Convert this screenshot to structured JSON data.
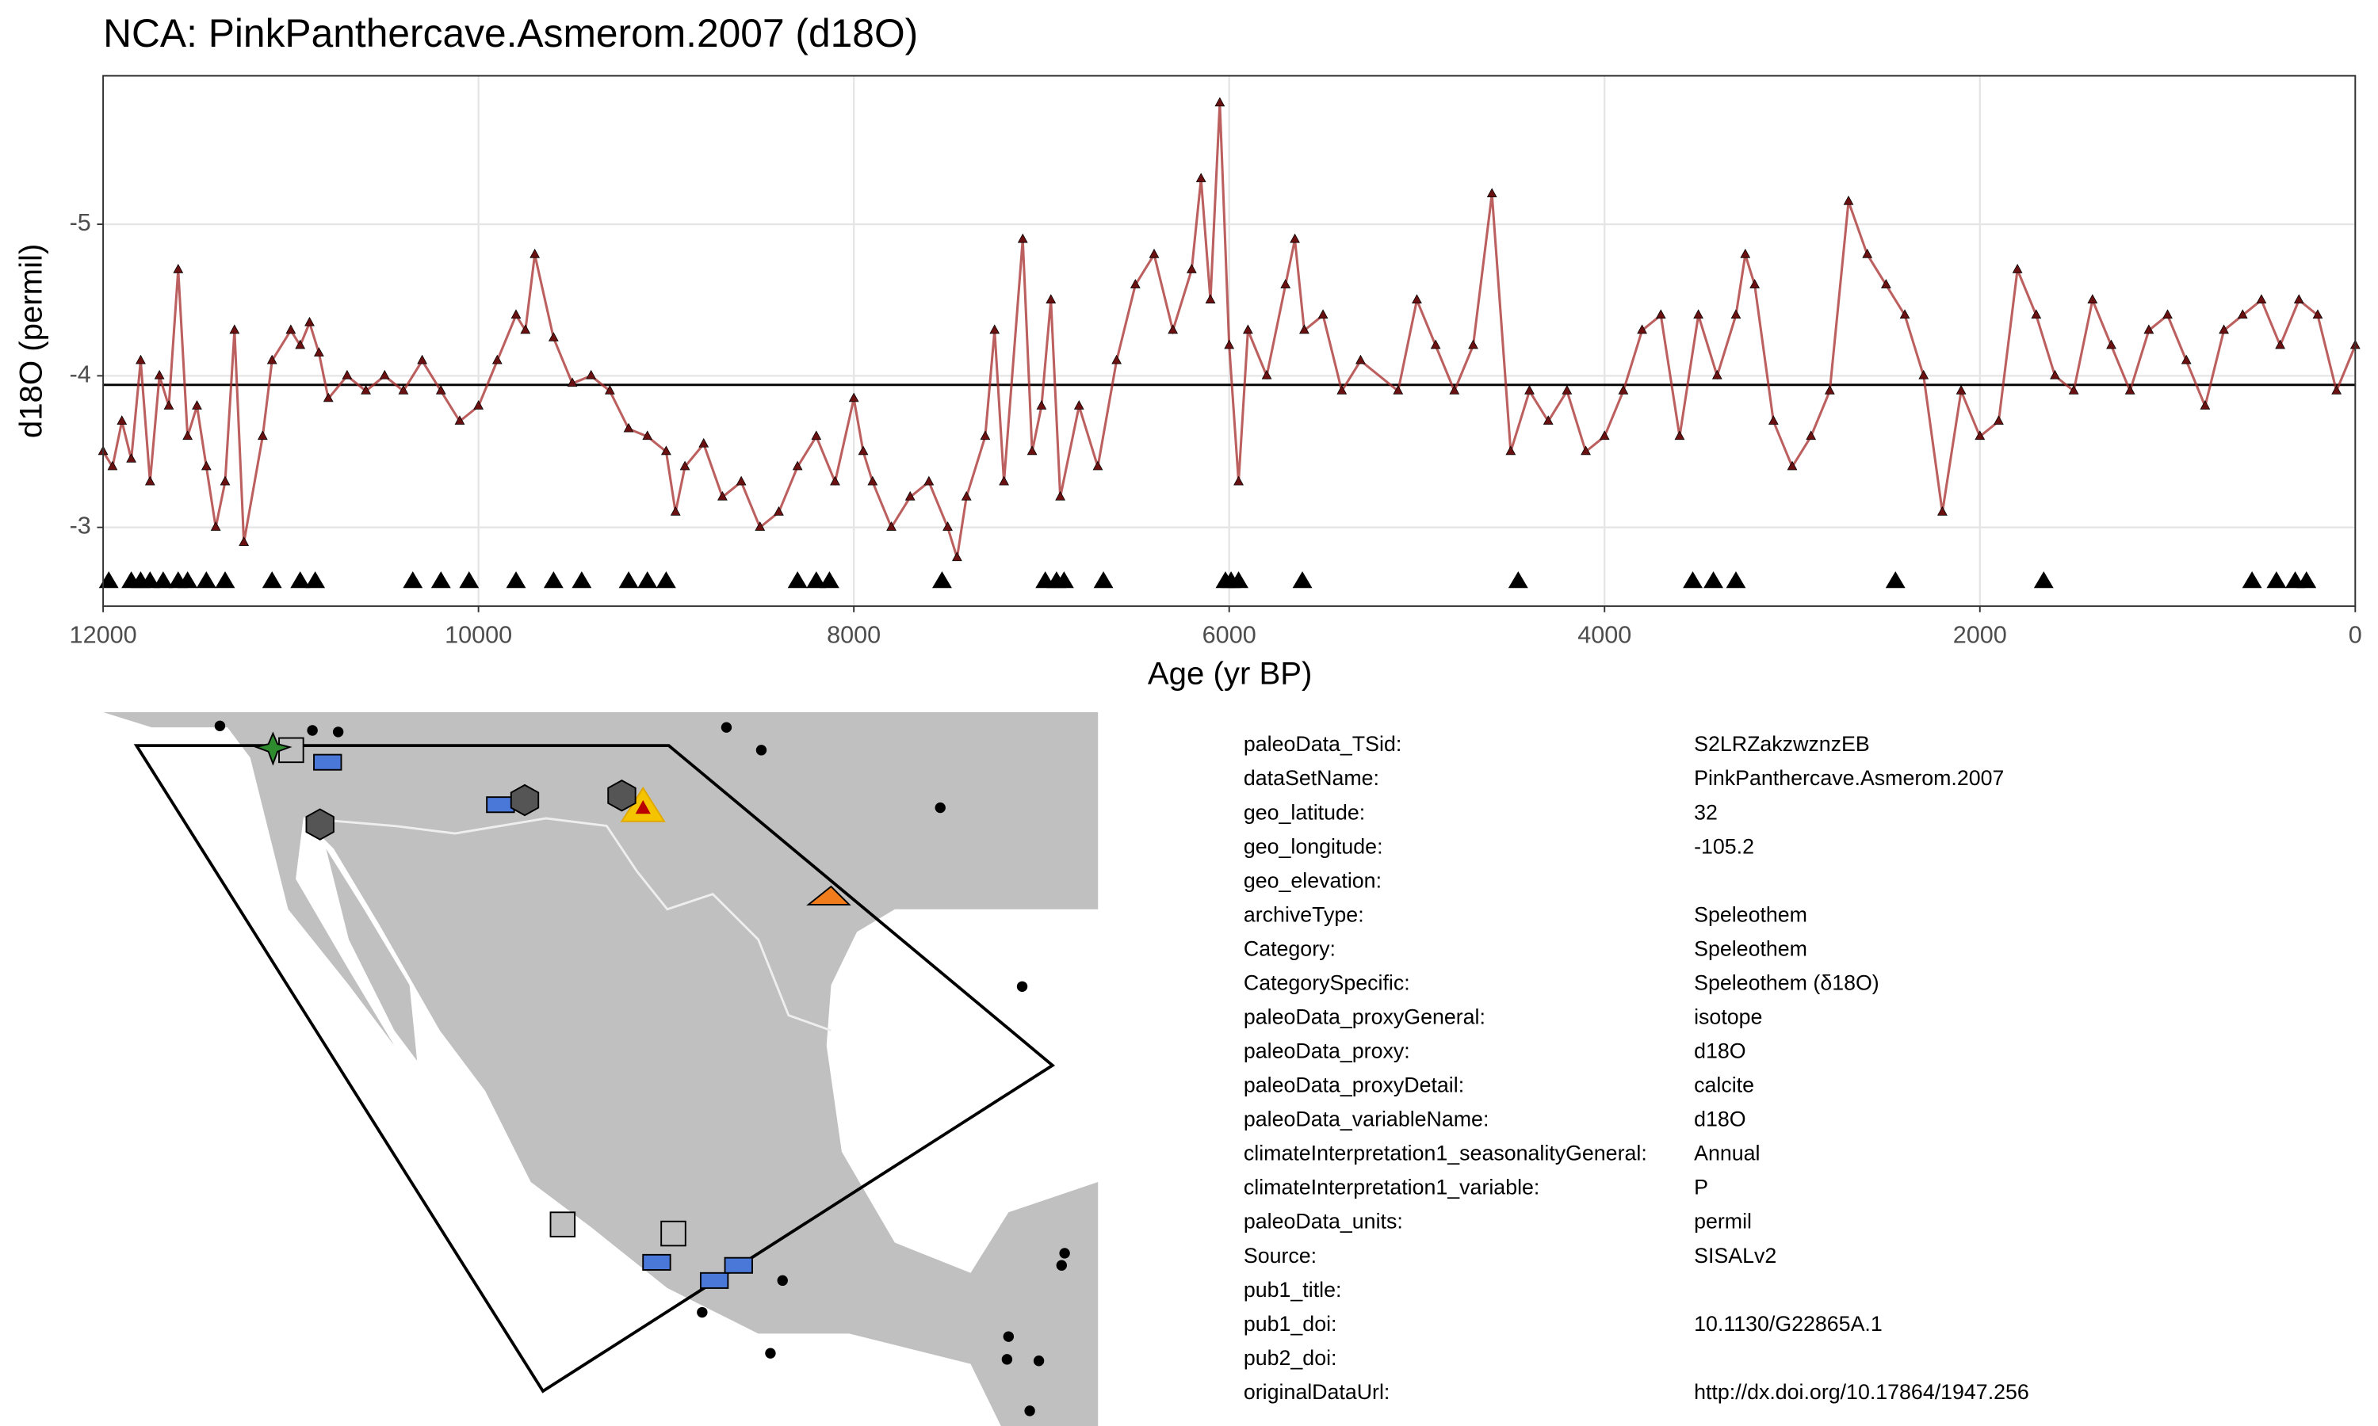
{
  "chart_data": {
    "type": "line",
    "title": "NCA: PinkPanthercave.Asmerom.2007 (d18O)",
    "x_label": "Age (yr BP)",
    "y_label": "d18O (permil)",
    "xlim": [
      12000,
      0
    ],
    "ylim": [
      -2.48,
      -5.98
    ],
    "xticks": [
      12000,
      10000,
      8000,
      6000,
      4000,
      2000,
      0
    ],
    "yticks": [
      -3,
      -4,
      -5
    ],
    "grid": true,
    "color": "#a52a2a",
    "hline": -3.94,
    "x": [
      12000,
      11950,
      11900,
      11850,
      11800,
      11750,
      11700,
      11650,
      11600,
      11550,
      11500,
      11450,
      11400,
      11350,
      11300,
      11250,
      11150,
      11100,
      11000,
      10950,
      10900,
      10850,
      10800,
      10700,
      10600,
      10500,
      10400,
      10300,
      10200,
      10100,
      10000,
      9900,
      9800,
      9750,
      9700,
      9600,
      9500,
      9400,
      9300,
      9200,
      9100,
      9000,
      8950,
      8900,
      8800,
      8700,
      8600,
      8500,
      8400,
      8300,
      8200,
      8100,
      8000,
      7950,
      7900,
      7800,
      7700,
      7600,
      7500,
      7450,
      7400,
      7300,
      7250,
      7200,
      7100,
      7050,
      7000,
      6950,
      6900,
      6800,
      6700,
      6600,
      6500,
      6400,
      6300,
      6200,
      6150,
      6100,
      6050,
      6000,
      5950,
      5900,
      5800,
      5700,
      5650,
      5600,
      5500,
      5400,
      5300,
      5100,
      5000,
      4900,
      4800,
      4700,
      4600,
      4500,
      4400,
      4300,
      4200,
      4100,
      4000,
      3900,
      3800,
      3700,
      3600,
      3500,
      3400,
      3300,
      3250,
      3200,
      3100,
      3000,
      2900,
      2800,
      2700,
      2600,
      2500,
      2400,
      2300,
      2200,
      2100,
      2000,
      1900,
      1800,
      1700,
      1600,
      1500,
      1400,
      1300,
      1200,
      1100,
      1000,
      900,
      800,
      700,
      600,
      500,
      400,
      300,
      200,
      100,
      0
    ],
    "values": [
      -3.5,
      -3.4,
      -3.7,
      -3.45,
      -4.1,
      -3.3,
      -4.0,
      -3.8,
      -4.7,
      -3.6,
      -3.8,
      -3.4,
      -3.0,
      -3.3,
      -4.3,
      -2.9,
      -3.6,
      -4.1,
      -4.3,
      -4.2,
      -4.35,
      -4.15,
      -3.85,
      -4.0,
      -3.9,
      -4.0,
      -3.9,
      -4.1,
      -3.9,
      -3.7,
      -3.8,
      -4.1,
      -4.4,
      -4.3,
      -4.8,
      -4.25,
      -3.95,
      -4.0,
      -3.9,
      -3.65,
      -3.6,
      -3.5,
      -3.1,
      -3.4,
      -3.55,
      -3.2,
      -3.3,
      -3.0,
      -3.1,
      -3.4,
      -3.6,
      -3.3,
      -3.85,
      -3.5,
      -3.3,
      -3.0,
      -3.2,
      -3.3,
      -3.0,
      -2.8,
      -3.2,
      -3.6,
      -4.3,
      -3.3,
      -4.9,
      -3.5,
      -3.8,
      -4.5,
      -3.2,
      -3.8,
      -3.4,
      -4.1,
      -4.6,
      -4.8,
      -4.3,
      -4.7,
      -5.3,
      -4.5,
      -5.8,
      -4.2,
      -3.3,
      -4.3,
      -4.0,
      -4.6,
      -4.9,
      -4.3,
      -4.4,
      -3.9,
      -4.1,
      -3.9,
      -4.5,
      -4.2,
      -3.9,
      -4.2,
      -5.2,
      -3.5,
      -3.9,
      -3.7,
      -3.9,
      -3.5,
      -3.6,
      -3.9,
      -4.3,
      -4.4,
      -3.6,
      -4.4,
      -4.0,
      -4.4,
      -4.8,
      -4.6,
      -3.7,
      -3.4,
      -3.6,
      -3.9,
      -5.15,
      -4.8,
      -4.6,
      -4.4,
      -4.0,
      -3.1,
      -3.9,
      -3.6,
      -3.7,
      -4.7,
      -4.4,
      -4.0,
      -3.9,
      -4.5,
      -4.2,
      -3.9,
      -4.3,
      -4.4,
      -4.1,
      -3.8,
      -4.3,
      -4.4,
      -4.5,
      -4.2,
      -4.5,
      -4.4,
      -3.9,
      -4.2
    ],
    "age_control_x": [
      11970,
      11850,
      11800,
      11750,
      11680,
      11600,
      11550,
      11450,
      11350,
      11100,
      10950,
      10870,
      10350,
      10200,
      10050,
      9800,
      9600,
      9450,
      9200,
      9100,
      9000,
      8300,
      8200,
      8130,
      7530,
      6980,
      6920,
      6880,
      6670,
      6020,
      5990,
      5950,
      5610,
      4460,
      3530,
      3420,
      3300,
      2450,
      1660,
      550,
      420,
      320,
      260
    ]
  },
  "metadata": {
    "rows": [
      [
        "paleoData_TSid:",
        "S2LRZakzwznzEB"
      ],
      [
        "dataSetName:",
        "PinkPanthercave.Asmerom.2007"
      ],
      [
        "geo_latitude:",
        "32"
      ],
      [
        "geo_longitude:",
        "-105.2"
      ],
      [
        "geo_elevation:"
      ],
      [
        "archiveType:",
        "Speleothem"
      ],
      [
        "Category:",
        "Speleothem"
      ],
      [
        "CategorySpecific:",
        "Speleothem (δ18O)"
      ],
      [
        "paleoData_proxyGeneral:",
        "isotope"
      ],
      [
        "paleoData_proxy:",
        "d18O"
      ],
      [
        "paleoData_proxyDetail:",
        "calcite"
      ],
      [
        "paleoData_variableName:",
        "d18O"
      ],
      [
        "climateInterpretation1_seasonalityGeneral:",
        "Annual"
      ],
      [
        "climateInterpretation1_variable:",
        "P"
      ],
      [
        "paleoData_units:",
        "permil"
      ],
      [
        "Source:",
        "SISALv2"
      ],
      [
        "pub1_title:"
      ],
      [
        "pub1_doi:",
        "10.1130/G22865A.1"
      ],
      [
        "pub2_doi:"
      ],
      [
        "originalDataUrl:",
        "http://dx.doi.org/10.17864/1947.256"
      ]
    ]
  }
}
